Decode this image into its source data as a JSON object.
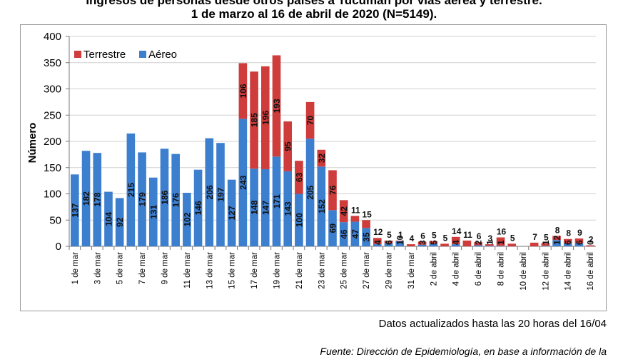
{
  "title_line1": "Ingresos de personas desde otros países a Tucumán por vías aérea y terrestre.",
  "title_line2": "1 de marzo al 16 de abril de 2020 (N=5149).",
  "update_note": "Datos actualizados hasta las 20 horas del 16/04",
  "source_note": "Fuente: Dirección de Epidemiología, en base a información de la",
  "colors": {
    "aereo": "#3d7fcf",
    "terrestre": "#cf3c3c"
  },
  "chart_data": {
    "type": "bar",
    "stacked": true,
    "ylabel": "Número",
    "ylim": [
      0,
      400
    ],
    "yticks": [
      0,
      50,
      100,
      150,
      200,
      250,
      300,
      350,
      400
    ],
    "grid": true,
    "legend_position": "top-left",
    "categories": [
      "1 de mar",
      "2 de mar",
      "3 de mar",
      "4 de mar",
      "5 de mar",
      "6 de mar",
      "7 de mar",
      "8 de mar",
      "9 de mar",
      "10 de mar",
      "11 de mar",
      "12 de mar",
      "13 de mar",
      "14 de mar",
      "15 de mar",
      "16 de mar",
      "17 de mar",
      "18 de mar",
      "19 de mar",
      "20 de mar",
      "21 de mar",
      "22 de mar",
      "23 de mar",
      "24 de mar",
      "25 de mar",
      "26 de mar",
      "27 de mar",
      "28 de mar",
      "29 de mar",
      "30 de mar",
      "31 de mar",
      "1 de abril",
      "2 de abril",
      "3 de abril",
      "4 de abril",
      "5 de abril",
      "6 de abril",
      "7 de abril",
      "8 de abril",
      "9 de abril",
      "10 de abril",
      "11 de abril",
      "12 de abril",
      "13 de abril",
      "14 de abril",
      "15 de abril",
      "16 de abril"
    ],
    "tick_labels": [
      "1 de mar",
      "",
      "3 de mar",
      "",
      "5 de mar",
      "",
      "7 de mar",
      "",
      "9 de mar",
      "",
      "11 de mar",
      "",
      "13 de mar",
      "",
      "15 de mar",
      "",
      "17 de mar",
      "",
      "19 de mar",
      "",
      "21 de mar",
      "",
      "23 de mar",
      "",
      "25 de mar",
      "",
      "27 de mar",
      "",
      "29 de mar",
      "",
      "31 de mar",
      "",
      "2 de abril",
      "",
      "4 de abril",
      "",
      "6 de abril",
      "",
      "8 de abril",
      "",
      "10 de abril",
      "",
      "12 de abril",
      "",
      "14 de abril",
      "",
      "16 de abril"
    ],
    "series": [
      {
        "name": "Aéreo",
        "values": [
          137,
          182,
          178,
          104,
          92,
          215,
          179,
          131,
          186,
          176,
          102,
          146,
          206,
          197,
          127,
          243,
          148,
          147,
          171,
          143,
          100,
          205,
          152,
          69,
          46,
          47,
          35,
          4,
          6,
          10,
          0,
          3,
          5,
          0,
          4,
          0,
          2,
          1,
          1,
          0,
          0,
          0,
          1,
          12,
          6,
          6,
          0
        ]
      },
      {
        "name": "Terrestre",
        "values": [
          0,
          0,
          0,
          0,
          0,
          0,
          0,
          0,
          0,
          0,
          0,
          0,
          0,
          0,
          0,
          106,
          185,
          196,
          193,
          95,
          63,
          70,
          32,
          76,
          42,
          11,
          15,
          12,
          5,
          1,
          4,
          6,
          5,
          5,
          14,
          11,
          6,
          3,
          16,
          5,
          0,
          7,
          5,
          8,
          8,
          9,
          2
        ]
      }
    ],
    "labels_aereo": [
      "137",
      "182",
      "178",
      "104",
      "92",
      "215",
      "179",
      "131",
      "186",
      "176",
      "102",
      "146",
      "206",
      "197",
      "127",
      "243",
      "148",
      "147",
      "171",
      "143",
      "100",
      "205",
      "152",
      "69",
      "46",
      "47",
      "35",
      "4",
      "6",
      "10",
      "",
      "3",
      "5",
      "",
      "4",
      "",
      "2",
      "1",
      "1",
      "",
      "",
      "",
      "1",
      "12",
      "6",
      "6",
      "0"
    ],
    "labels_terrestre": [
      "",
      "",
      "",
      "",
      "",
      "",
      "",
      "",
      "",
      "",
      "",
      "",
      "",
      "",
      "",
      "106",
      "185",
      "196",
      "193",
      "95",
      "63",
      "70",
      "32",
      "76",
      "42",
      "11",
      "15",
      "12",
      "5",
      "1",
      "4",
      "6",
      "5",
      "5",
      "14",
      "11",
      "6",
      "3",
      "16",
      "5",
      "",
      "7",
      "5",
      "8",
      "8",
      "9",
      "2"
    ]
  }
}
